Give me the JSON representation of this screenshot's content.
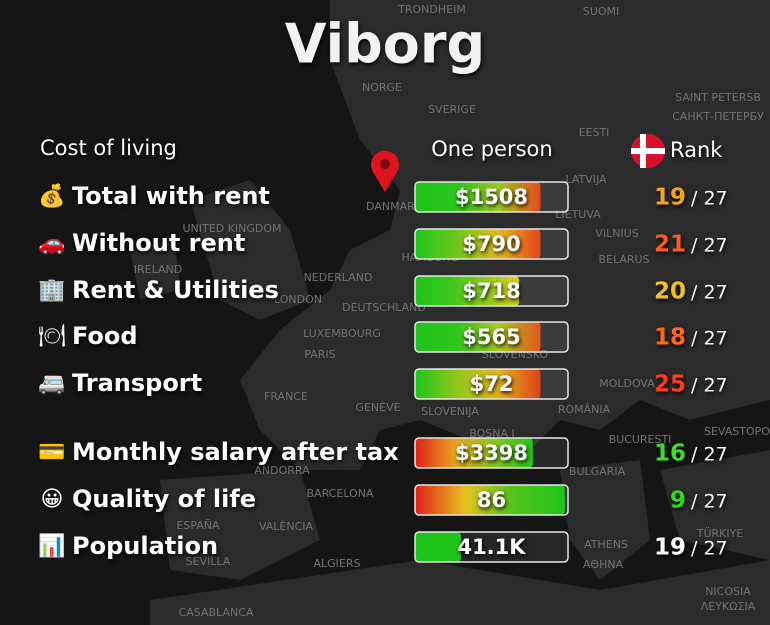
{
  "title": "Viborg",
  "header": {
    "section": "Cost of living",
    "column": "One person",
    "rank": "Rank"
  },
  "rows": [
    {
      "icon": "💰",
      "label": "Total with rent",
      "value": "$1508",
      "fill": 82,
      "colors": [
        "#1ec41a",
        "#2bc51b",
        "#9ccb1e",
        "#e84a1d"
      ],
      "rank": "19",
      "rank_color": "#f5a21d",
      "of": "/ 27"
    },
    {
      "icon": "🚗",
      "label": "Without rent",
      "value": "$790",
      "fill": 82,
      "colors": [
        "#1ec41a",
        "#6fc81c",
        "#e5b91e",
        "#e3431c"
      ],
      "rank": "21",
      "rank_color": "#ff5a1f",
      "of": "/ 27"
    },
    {
      "icon": "🏢",
      "label": "Rent & Utilities",
      "value": "$718",
      "fill": 68,
      "colors": [
        "#1ec41a",
        "#3ac61b",
        "#8cca1d",
        "#d8cf1f"
      ],
      "rank": "20",
      "rank_color": "#f2c21a",
      "of": "/ 27"
    },
    {
      "icon": "🍽",
      "label": "Food",
      "value": "$565",
      "fill": 82,
      "colors": [
        "#1ec41a",
        "#2ec51b",
        "#a6cb1e",
        "#e6561d"
      ],
      "rank": "18",
      "rank_color": "#ff6a1a",
      "of": "/ 27"
    },
    {
      "icon": "🚐",
      "label": "Transport",
      "value": "$72",
      "fill": 82,
      "colors": [
        "#1ec41a",
        "#8ec81d",
        "#e2b31e",
        "#e0401c"
      ],
      "rank": "25",
      "rank_color": "#ff3d1a",
      "of": "/ 27"
    },
    {
      "icon": "💳",
      "label": "Monthly salary after tax",
      "value": "$3398",
      "fill": 77,
      "colors": [
        "#e0201a",
        "#e8a21d",
        "#8cc81d",
        "#1ec41a"
      ],
      "rank": "16",
      "rank_color": "#3fdc2a",
      "of": "/ 27"
    },
    {
      "icon": "😀",
      "label": "Quality of life",
      "value": "86",
      "fill": 98,
      "colors": [
        "#e0201a",
        "#e8c21e",
        "#4fc41b",
        "#1ec41a"
      ],
      "rank": "9",
      "rank_color": "#2fdc1a",
      "of": "/ 27"
    },
    {
      "icon": "📊",
      "label": "Population",
      "value": "41.1K",
      "fill": 30,
      "colors": [
        "#1ec41a",
        "#1ec41a"
      ],
      "rank": "19",
      "rank_color": "#ffffff",
      "of": "/ 27"
    }
  ],
  "map_labels": [
    "TRONDHEIM",
    "SUOMI",
    "NORGE",
    "SVERIGE",
    "SAINT PETERSB",
    "САНКТ-ПЕТЕРБУ",
    "EESTI",
    "LATVIJA",
    "DANMARK",
    "LIETUVA",
    "UNITED KINGDOM",
    "VILNIUS",
    "HAMBURG",
    "BELARUS",
    "IRELAND",
    "NEDERLAND",
    "LONDON",
    "DEUTSCHLAND",
    "LUXEMBOURG",
    "PARIS",
    "SLOVENSKO",
    "MOLDOVA",
    "FRANCE",
    "GENÈVE",
    "SLOVENIJA",
    "ROMÂNIA",
    "BOSNA I",
    "SEVASTOPOL",
    "BUCUREȘTI",
    "ANDORRA",
    "BULGARIA",
    "BARCELONA",
    "ESPAÑA",
    "VALÈNCIA",
    "SEVILLA",
    "ALGIERS",
    "ATHENS",
    "ΑΘΗΝΑ",
    "TÜRKIYE",
    "CASABLANCA",
    "NICOSIA",
    "ΛΕΥΚΩΣΙΑ"
  ]
}
